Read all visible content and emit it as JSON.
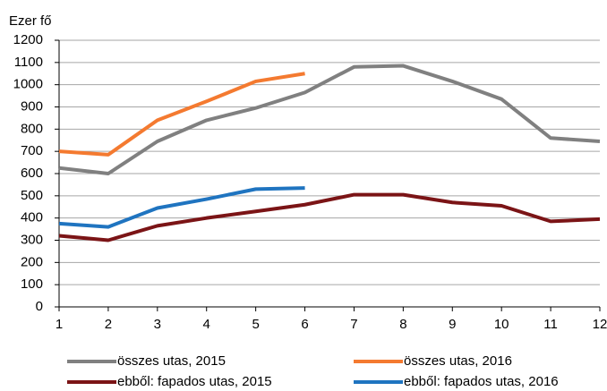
{
  "chart_data": {
    "type": "line",
    "y_label": "Ezer fő",
    "x": [
      1,
      2,
      3,
      4,
      5,
      6,
      7,
      8,
      9,
      10,
      11,
      12
    ],
    "xlim": [
      1,
      12
    ],
    "xticks": [
      1,
      2,
      3,
      4,
      5,
      6,
      7,
      8,
      9,
      10,
      11,
      12
    ],
    "ylim": [
      0,
      1200
    ],
    "yticks": [
      0,
      100,
      200,
      300,
      400,
      500,
      600,
      700,
      800,
      900,
      1000,
      1100,
      1200
    ],
    "grid": true,
    "series": [
      {
        "name": "összes utas, 2015",
        "color": "#808080",
        "values": [
          625,
          600,
          745,
          840,
          895,
          965,
          1080,
          1085,
          1015,
          935,
          760,
          745
        ]
      },
      {
        "name": "összes utas, 2016",
        "color": "#f47a30",
        "values": [
          700,
          685,
          840,
          925,
          1015,
          1050,
          null,
          null,
          null,
          null,
          null,
          null
        ]
      },
      {
        "name": "ebből: fapados utas, 2015",
        "color": "#7b1416",
        "values": [
          320,
          300,
          365,
          400,
          430,
          460,
          505,
          505,
          470,
          455,
          385,
          395
        ]
      },
      {
        "name": "ebből: fapados utas, 2016",
        "color": "#1f74c0",
        "values": [
          375,
          360,
          445,
          485,
          530,
          535,
          null,
          null,
          null,
          null,
          null,
          null
        ]
      }
    ]
  }
}
